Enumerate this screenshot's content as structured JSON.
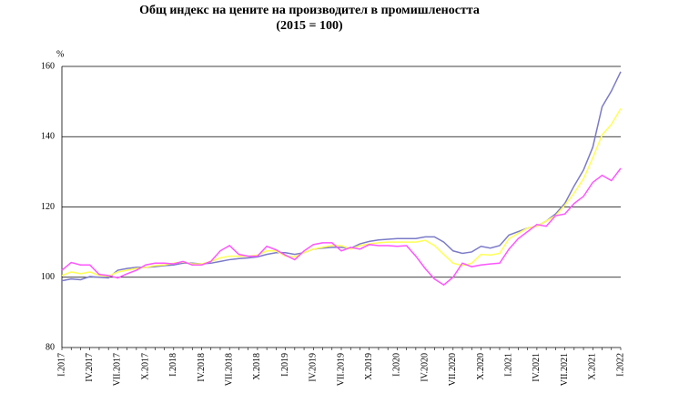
{
  "chart_data": {
    "type": "line",
    "title": "Общ индекс на цените на производител в промишлеността",
    "subtitle": "(2015 = 100)",
    "y_label": "%",
    "categories": [
      "I.2017",
      null,
      null,
      "IV.2017",
      null,
      null,
      "VII.2017",
      null,
      null,
      "X.2017",
      null,
      null,
      "I.2018",
      null,
      null,
      "IV.2018",
      null,
      null,
      "VII.2018",
      null,
      null,
      "X.2018",
      null,
      null,
      "I.2019",
      null,
      null,
      "IV.2019",
      null,
      null,
      "VII.2019",
      null,
      null,
      "X.2019",
      null,
      null,
      "I.2020",
      null,
      null,
      "IV.2020",
      null,
      null,
      "VII.2020",
      null,
      null,
      "X.2020",
      null,
      null,
      "I.2021",
      null,
      null,
      "IV.2021",
      null,
      null,
      "VII.2021",
      null,
      null,
      "X.2021",
      null,
      null,
      "I.2022"
    ],
    "series": [
      {
        "color": "#7b7bc8",
        "values": [
          99,
          99.5,
          99.3,
          100.2,
          100,
          99.8,
          102,
          102.5,
          102.8,
          102.8,
          103,
          103.3,
          103.5,
          104,
          104,
          103.8,
          104,
          104.5,
          105,
          105.3,
          105.5,
          105.8,
          106.5,
          107,
          107,
          106.5,
          107,
          108,
          108.3,
          108.5,
          108.5,
          108.2,
          109.5,
          110.2,
          110.6,
          110.8,
          111,
          111,
          111,
          111.5,
          111.5,
          110,
          107.5,
          106.8,
          107.2,
          108.8,
          108.3,
          109,
          112,
          113,
          114,
          114.5,
          116,
          118,
          121,
          126,
          130.5,
          137,
          148.5,
          153,
          158.5
        ]
      },
      {
        "color": "#ffff55",
        "values": [
          100.5,
          101.5,
          101,
          101.5,
          100.5,
          100.3,
          101.5,
          102,
          102.5,
          102.8,
          103.3,
          103.5,
          104,
          104.3,
          103.8,
          103.8,
          104.5,
          105.5,
          106,
          106,
          106,
          106.3,
          107.5,
          107.5,
          106,
          105.8,
          107,
          108,
          108.5,
          109,
          109,
          108,
          109,
          109.5,
          109.8,
          110,
          110,
          110,
          110,
          110.5,
          109,
          106.5,
          104,
          103.3,
          104,
          106.5,
          106.3,
          106.8,
          111,
          112.5,
          114,
          114.5,
          116,
          117.5,
          120.5,
          124,
          128,
          134,
          140.5,
          143.5,
          148
        ]
      },
      {
        "color": "#ff55ff",
        "values": [
          102,
          104.2,
          103.5,
          103.5,
          100.8,
          100.5,
          99.8,
          101,
          102,
          103.5,
          104,
          104,
          103.8,
          104.5,
          103.5,
          103.5,
          104.5,
          107.5,
          109,
          106.5,
          106,
          106,
          108.8,
          107.8,
          106.3,
          105,
          107.5,
          109.3,
          109.8,
          109.8,
          107.5,
          108.5,
          108,
          109.3,
          109,
          109,
          108.8,
          109,
          106,
          102.5,
          99.5,
          97.8,
          100,
          104,
          103,
          103.5,
          103.8,
          104,
          108,
          111,
          113,
          115,
          114.5,
          117.5,
          118,
          121,
          123,
          127,
          129,
          127.5,
          131
        ]
      }
    ],
    "ylim": [
      80,
      160
    ],
    "yticks": [
      80,
      100,
      120,
      140,
      160
    ],
    "grid": true
  }
}
